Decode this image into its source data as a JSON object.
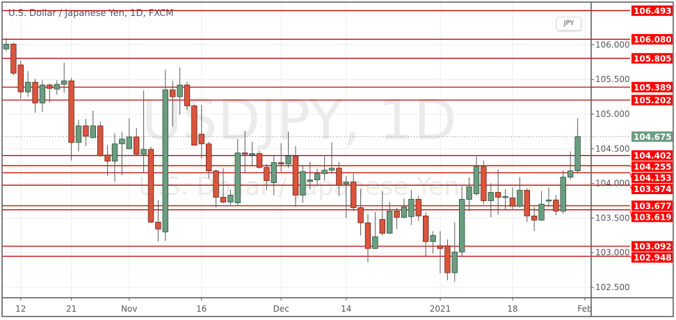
{
  "header": {
    "title": "U.S. Dollar / Japanese Yen, 1D, FXCM",
    "currency_badge": "JPY"
  },
  "watermark": {
    "symbol": "USDJPY, 1D",
    "name": "U.S. Dollar / Japanese Yen"
  },
  "colors": {
    "up": "#6b9e80",
    "down": "#d8553e",
    "level_line": "#c00000",
    "level_label_bg": "#ff0000",
    "last_price_bg": "#6b9e80",
    "grid": "#ececec"
  },
  "chart_data": {
    "type": "candlestick",
    "title": "U.S. Dollar / Japanese Yen, 1D, FXCM",
    "ylim": [
      102.27,
      106.6
    ],
    "y_ticks": [
      "102.500",
      "103.000",
      "103.500",
      "104.000",
      "104.500",
      "105.000",
      "105.500",
      "106.000"
    ],
    "grid": true,
    "x_ticks": [
      {
        "label": "12",
        "date": "2020-10-12"
      },
      {
        "label": "21",
        "date": "2020-10-21"
      },
      {
        "label": "Nov",
        "date": "2020-11-02"
      },
      {
        "label": "16",
        "date": "2020-11-16"
      },
      {
        "label": "Dec",
        "date": "2020-12-01"
      },
      {
        "label": "14",
        "date": "2020-12-14"
      },
      {
        "label": "2021",
        "date": "2021-01-04"
      },
      {
        "label": "18",
        "date": "2021-01-18"
      },
      {
        "label": "Feb",
        "date": "2021-02-01"
      }
    ],
    "last_price": "104.675",
    "levels": [
      "106.493",
      "106.080",
      "105.805",
      "105.389",
      "105.202",
      "104.402",
      "104.255",
      "104.153",
      "103.974",
      "103.677",
      "103.619",
      "103.092",
      "102.948"
    ],
    "candles_ohlc": [
      [
        "2020-10-08",
        105.94,
        106.1,
        105.91,
        106.01
      ],
      [
        "2020-10-09",
        106.01,
        106.03,
        105.56,
        105.59
      ],
      [
        "2020-10-12",
        105.71,
        105.77,
        105.22,
        105.32
      ],
      [
        "2020-10-13",
        105.32,
        105.62,
        105.25,
        105.46
      ],
      [
        "2020-10-14",
        105.46,
        105.51,
        105.02,
        105.16
      ],
      [
        "2020-10-15",
        105.16,
        105.49,
        105.03,
        105.42
      ],
      [
        "2020-10-16",
        105.42,
        105.44,
        105.17,
        105.37
      ],
      [
        "2020-10-19",
        105.36,
        105.49,
        105.28,
        105.43
      ],
      [
        "2020-10-20",
        105.43,
        105.74,
        105.31,
        105.48
      ],
      [
        "2020-10-21",
        105.48,
        105.52,
        104.33,
        104.59
      ],
      [
        "2020-10-22",
        104.59,
        104.92,
        104.46,
        104.83
      ],
      [
        "2020-10-23",
        104.83,
        104.93,
        104.54,
        104.68
      ],
      [
        "2020-10-26",
        104.66,
        105.05,
        104.65,
        104.83
      ],
      [
        "2020-10-27",
        104.83,
        104.89,
        104.38,
        104.4
      ],
      [
        "2020-10-28",
        104.41,
        104.55,
        104.11,
        104.32
      ],
      [
        "2020-10-29",
        104.32,
        104.72,
        104.02,
        104.57
      ],
      [
        "2020-10-30",
        104.57,
        104.74,
        104.12,
        104.64
      ],
      [
        "2020-11-02",
        104.5,
        104.94,
        104.49,
        104.67
      ],
      [
        "2020-11-03",
        104.67,
        104.8,
        104.41,
        104.42
      ],
      [
        "2020-11-04",
        104.42,
        105.34,
        104.15,
        104.49
      ],
      [
        "2020-11-05",
        104.49,
        104.53,
        103.43,
        103.44
      ],
      [
        "2020-11-06",
        103.44,
        103.76,
        103.16,
        103.34
      ],
      [
        "2020-11-09",
        103.3,
        105.64,
        103.17,
        105.35
      ],
      [
        "2020-11-10",
        105.35,
        105.48,
        104.82,
        105.25
      ],
      [
        "2020-11-11",
        105.25,
        105.67,
        104.99,
        105.42
      ],
      [
        "2020-11-12",
        105.42,
        105.47,
        105.06,
        105.12
      ],
      [
        "2020-11-13",
        105.12,
        105.14,
        104.55,
        104.55
      ],
      [
        "2020-11-16",
        104.71,
        105.13,
        104.36,
        104.57
      ],
      [
        "2020-11-17",
        104.57,
        104.6,
        104.07,
        104.18
      ],
      [
        "2020-11-18",
        104.18,
        104.2,
        103.65,
        103.8
      ],
      [
        "2020-11-19",
        103.8,
        104.22,
        103.71,
        103.73
      ],
      [
        "2020-11-20",
        103.73,
        103.91,
        103.69,
        103.83
      ],
      [
        "2020-11-23",
        103.72,
        104.64,
        103.68,
        104.44
      ],
      [
        "2020-11-24",
        104.44,
        104.76,
        104.15,
        104.42
      ],
      [
        "2020-11-25",
        104.41,
        104.6,
        104.26,
        104.43
      ],
      [
        "2020-11-26",
        104.43,
        104.47,
        104.21,
        104.23
      ],
      [
        "2020-11-27",
        104.23,
        104.28,
        103.9,
        104.04
      ],
      [
        "2020-11-30",
        104.01,
        104.41,
        103.83,
        104.3
      ],
      [
        "2020-12-01",
        104.3,
        104.58,
        104.17,
        104.28
      ],
      [
        "2020-12-02",
        104.28,
        104.75,
        104.22,
        104.39
      ],
      [
        "2020-12-03",
        104.39,
        104.54,
        103.66,
        103.83
      ],
      [
        "2020-12-04",
        103.83,
        104.25,
        103.72,
        104.17
      ],
      [
        "2020-12-07",
        104.03,
        104.31,
        103.91,
        104.05
      ],
      [
        "2020-12-08",
        104.05,
        104.21,
        103.96,
        104.14
      ],
      [
        "2020-12-09",
        104.14,
        104.39,
        104.04,
        104.19
      ],
      [
        "2020-12-10",
        104.19,
        104.59,
        104.14,
        104.22
      ],
      [
        "2020-12-11",
        104.22,
        104.31,
        103.82,
        103.97
      ],
      [
        "2020-12-14",
        103.99,
        104.11,
        103.5,
        104.02
      ],
      [
        "2020-12-15",
        104.02,
        104.14,
        103.6,
        103.65
      ],
      [
        "2020-12-16",
        103.65,
        103.92,
        103.25,
        103.43
      ],
      [
        "2020-12-17",
        103.43,
        103.56,
        102.86,
        103.06
      ],
      [
        "2020-12-18",
        103.06,
        103.59,
        103.05,
        103.23
      ],
      [
        "2020-12-21",
        103.48,
        103.89,
        103.25,
        103.28
      ],
      [
        "2020-12-22",
        103.28,
        103.73,
        103.27,
        103.6
      ],
      [
        "2020-12-23",
        103.6,
        103.65,
        103.34,
        103.51
      ],
      [
        "2020-12-24",
        103.51,
        103.78,
        103.5,
        103.66
      ],
      [
        "2020-12-28",
        103.52,
        103.9,
        103.4,
        103.77
      ],
      [
        "2020-12-29",
        103.77,
        103.82,
        103.46,
        103.53
      ],
      [
        "2020-12-30",
        103.53,
        103.58,
        102.95,
        103.16
      ],
      [
        "2020-12-31",
        103.16,
        103.31,
        102.99,
        103.25
      ],
      [
        "2021-01-04",
        103.1,
        103.31,
        102.7,
        103.06
      ],
      [
        "2021-01-05",
        103.1,
        103.19,
        102.6,
        102.71
      ],
      [
        "2021-01-06",
        102.71,
        103.44,
        102.58,
        103.01
      ],
      [
        "2021-01-07",
        103.01,
        103.96,
        102.95,
        103.77
      ],
      [
        "2021-01-08",
        103.77,
        104.09,
        103.6,
        103.95
      ],
      [
        "2021-01-11",
        103.85,
        104.39,
        103.82,
        104.24
      ],
      [
        "2021-01-12",
        104.24,
        104.33,
        103.7,
        103.75
      ],
      [
        "2021-01-13",
        103.75,
        104.0,
        103.51,
        103.87
      ],
      [
        "2021-01-14",
        103.87,
        104.2,
        103.55,
        103.8
      ],
      [
        "2021-01-15",
        103.8,
        103.92,
        103.61,
        103.81
      ],
      [
        "2021-01-18",
        103.79,
        103.94,
        103.63,
        103.67
      ],
      [
        "2021-01-19",
        103.67,
        104.09,
        103.65,
        103.9
      ],
      [
        "2021-01-20",
        103.9,
        103.93,
        103.44,
        103.53
      ],
      [
        "2021-01-21",
        103.53,
        103.66,
        103.31,
        103.47
      ],
      [
        "2021-01-22",
        103.47,
        103.89,
        103.46,
        103.7
      ],
      [
        "2021-01-25",
        103.76,
        103.94,
        103.66,
        103.76
      ],
      [
        "2021-01-26",
        103.76,
        103.83,
        103.54,
        103.6
      ],
      [
        "2021-01-27",
        103.6,
        104.19,
        103.56,
        104.09
      ],
      [
        "2021-01-28",
        104.09,
        104.46,
        104.05,
        104.18
      ],
      [
        "2021-01-29",
        104.18,
        104.94,
        104.16,
        104.675
      ]
    ]
  }
}
